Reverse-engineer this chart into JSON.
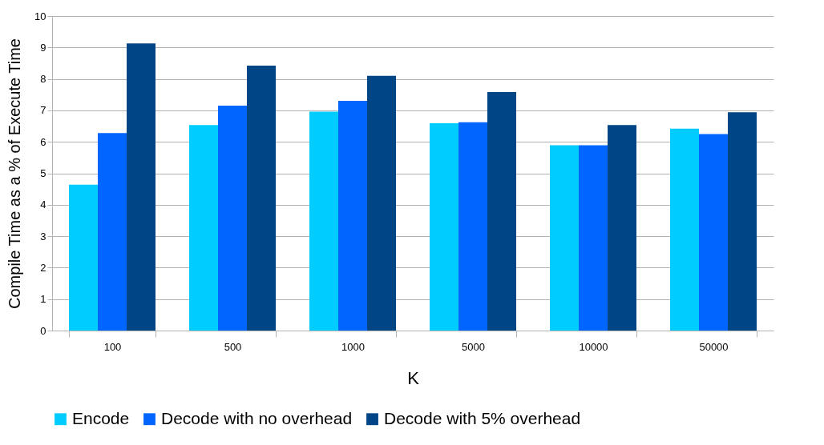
{
  "chart_data": {
    "type": "bar",
    "xlabel": "K",
    "ylabel": "Compile Time as a % of Execute Time",
    "categories": [
      "100",
      "500",
      "1000",
      "5000",
      "10000",
      "50000"
    ],
    "series": [
      {
        "name": "Encode",
        "color": "#00ccff",
        "values": [
          4.64,
          6.53,
          6.96,
          6.59,
          5.89,
          6.42
        ]
      },
      {
        "name": "Decode with no overhead",
        "color": "#0066ff",
        "values": [
          6.28,
          7.15,
          7.3,
          6.62,
          5.89,
          6.25
        ]
      },
      {
        "name": "Decode with 5% overhead",
        "color": "#004586",
        "values": [
          9.13,
          8.42,
          8.1,
          7.58,
          6.53,
          6.94
        ]
      }
    ],
    "ylim": [
      0,
      10
    ],
    "yticks": [
      0,
      1,
      2,
      3,
      4,
      5,
      6,
      7,
      8,
      9,
      10
    ],
    "grid": "y",
    "legend": "bottom"
  }
}
